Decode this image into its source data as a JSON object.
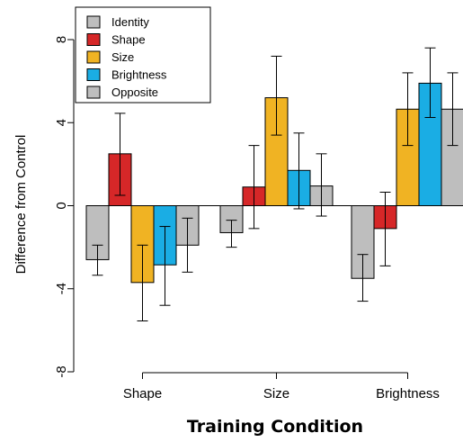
{
  "chart_data": {
    "type": "bar",
    "title": "",
    "xlabel": "Training Condition",
    "ylabel": "Difference from Control",
    "ylim": [
      -8,
      8
    ],
    "yticks": [
      -8,
      -4,
      0,
      4,
      8
    ],
    "ytick_labels": [
      "-8",
      "-4",
      "0",
      "4",
      "8"
    ],
    "categories": [
      "Shape",
      "Size",
      "Brightness"
    ],
    "series": [
      {
        "name": "Identity",
        "color": "#BEBEBE",
        "values": [
          -2.6,
          -1.3,
          -3.5
        ],
        "err_low": [
          -3.35,
          -2.0,
          -4.6
        ],
        "err_high": [
          -1.9,
          -0.7,
          -2.35
        ]
      },
      {
        "name": "Shape",
        "color": "#D62728",
        "values": [
          2.5,
          0.9,
          -1.1
        ],
        "err_low": [
          0.5,
          -1.1,
          -2.9
        ],
        "err_high": [
          4.45,
          2.9,
          0.65
        ]
      },
      {
        "name": "Size",
        "color": "#F0B323",
        "values": [
          -3.7,
          5.2,
          4.65
        ],
        "err_low": [
          -5.55,
          3.4,
          2.9
        ],
        "err_high": [
          -1.9,
          7.2,
          6.4
        ]
      },
      {
        "name": "Brightness",
        "color": "#1AADE4",
        "values": [
          -2.85,
          1.7,
          5.9
        ],
        "err_low": [
          -4.8,
          -0.15,
          4.25
        ],
        "err_high": [
          -1.0,
          3.5,
          7.6
        ]
      },
      {
        "name": "Opposite",
        "color": "#BEBEBE",
        "values": [
          -1.9,
          0.95,
          4.65
        ],
        "err_low": [
          -3.2,
          -0.5,
          2.9
        ],
        "err_high": [
          -0.6,
          2.5,
          6.4
        ]
      }
    ],
    "legend_position": "top-left",
    "grid": false,
    "zero_line": true
  }
}
